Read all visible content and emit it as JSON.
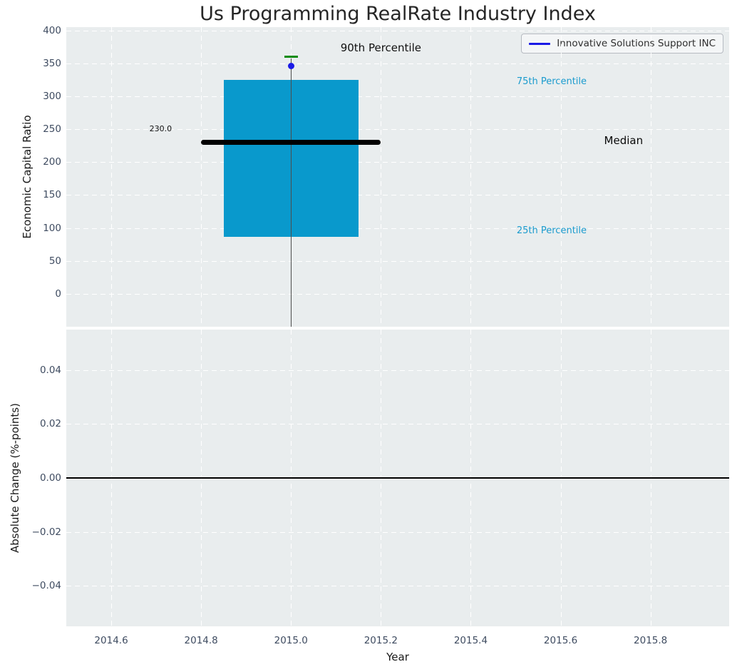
{
  "title": "Us Programming RealRate Industry Index",
  "legend": {
    "label": "Innovative Solutions Support INC",
    "line_color": "#1a1ae6"
  },
  "chart_data": {
    "type": "box",
    "title": "Us Programming RealRate Industry Index",
    "xlabel": "Year",
    "grid": true,
    "legend_position": "upper right",
    "background_color": "#e9edee",
    "xlim": [
      2014.5,
      2015.975
    ],
    "x_ticks": [
      {
        "v": 2014.6,
        "label": "2014.6"
      },
      {
        "v": 2014.8,
        "label": "2014.8"
      },
      {
        "v": 2015.0,
        "label": "2015.0"
      },
      {
        "v": 2015.2,
        "label": "2015.2"
      },
      {
        "v": 2015.4,
        "label": "2015.4"
      },
      {
        "v": 2015.6,
        "label": "2015.6"
      },
      {
        "v": 2015.8,
        "label": "2015.8"
      }
    ],
    "top_panel": {
      "ylabel": "Economic Capital Ratio",
      "ylim": [
        -50,
        405
      ],
      "y_ticks": [
        {
          "v": 400,
          "label": "400"
        },
        {
          "v": 350,
          "label": "350"
        },
        {
          "v": 300,
          "label": "300"
        },
        {
          "v": 250,
          "label": "250"
        },
        {
          "v": 200,
          "label": "200"
        },
        {
          "v": 150,
          "label": "150"
        },
        {
          "v": 100,
          "label": "100"
        },
        {
          "v": 50,
          "label": "50"
        },
        {
          "v": 0,
          "label": "0"
        }
      ],
      "box": {
        "x": 2015.0,
        "p25": 87,
        "median": 230.0,
        "p75": 325,
        "p90": 360,
        "whisker_low_clipped_below_axis": true,
        "box_width": 0.3,
        "median_line_width": 0.4,
        "box_color": "#0999cc",
        "median_color": "#000000",
        "p90_tick_color": "#0f8c0f",
        "whisker_color": "#4d4d4d"
      },
      "company_point": {
        "name": "Innovative Solutions Support INC",
        "x": 2015.0,
        "y": 346,
        "color": "#1a1ae6"
      },
      "median_value_label": {
        "id": "median-value-label",
        "text": "230.0",
        "x": 2014.71,
        "y": 249,
        "color": "#111111",
        "size": 11
      },
      "annotations": [
        {
          "id": "90th-percentile-label",
          "text": "90th Percentile",
          "x": 2015.2,
          "y": 372,
          "color": "#111111",
          "size": 15
        },
        {
          "id": "75th-percentile-label",
          "text": "75th Percentile",
          "x": 2015.58,
          "y": 320,
          "color": "#1a9bce",
          "size": 13
        },
        {
          "id": "median-label",
          "text": "Median",
          "x": 2015.74,
          "y": 231,
          "color": "#0a0a0a",
          "size": 15
        },
        {
          "id": "25th-percentile-label",
          "text": "25th Percentile",
          "x": 2015.58,
          "y": 94,
          "color": "#1a9bce",
          "size": 13
        }
      ]
    },
    "bottom_panel": {
      "ylabel": "Absolute Change (%-points)",
      "ylim": [
        -0.055,
        0.055
      ],
      "y_ticks": [
        {
          "v": 0.04,
          "label": "0.04"
        },
        {
          "v": 0.02,
          "label": "0.02"
        },
        {
          "v": 0.0,
          "label": "0.00"
        },
        {
          "v": -0.02,
          "label": "−0.02"
        },
        {
          "v": -0.04,
          "label": "−0.04"
        }
      ],
      "zero_line": {
        "y": 0.0,
        "color": "#000000"
      },
      "series_values": []
    }
  }
}
